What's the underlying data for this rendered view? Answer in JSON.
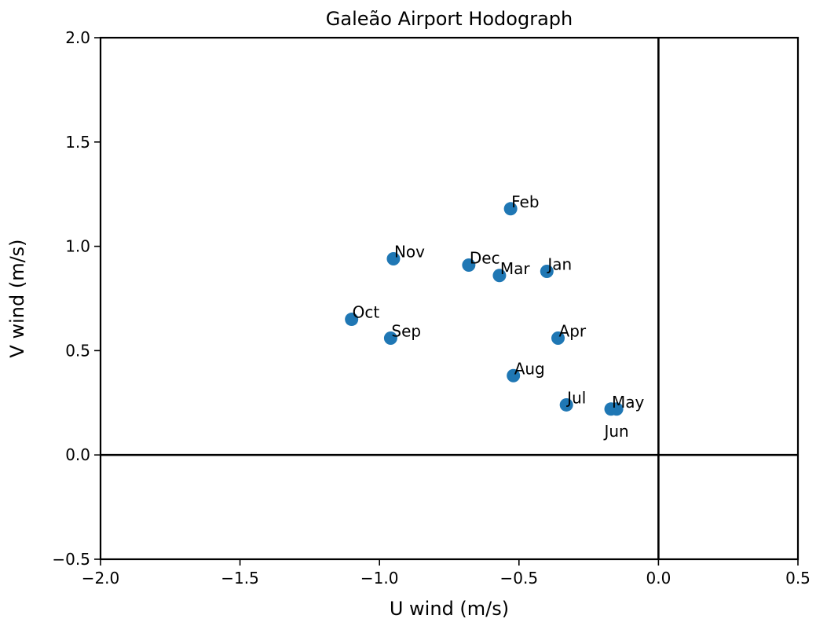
{
  "chart_data": {
    "type": "scatter",
    "title": "Galeão Airport Hodograph",
    "xlabel": "U wind (m/s)",
    "ylabel": "V wind (m/s)",
    "xlim": [
      -2.0,
      0.5
    ],
    "ylim": [
      -0.5,
      2.0
    ],
    "xticks": [
      "−2.0",
      "−1.5",
      "−1.0",
      "−0.5",
      "0.0",
      "0.5"
    ],
    "yticks": [
      "−0.5",
      "0.0",
      "0.5",
      "1.0",
      "1.5",
      "2.0"
    ],
    "grid": false,
    "zero_lines": true,
    "marker_color": "#1f77b4",
    "points": [
      {
        "label": "Jan",
        "x": -0.4,
        "y": 0.88
      },
      {
        "label": "Feb",
        "x": -0.53,
        "y": 1.18
      },
      {
        "label": "Mar",
        "x": -0.57,
        "y": 0.86
      },
      {
        "label": "Apr",
        "x": -0.36,
        "y": 0.56
      },
      {
        "label": "May",
        "x": -0.17,
        "y": 0.22
      },
      {
        "label": "Jun",
        "x": -0.15,
        "y": 0.22
      },
      {
        "label": "Jul",
        "x": -0.33,
        "y": 0.24
      },
      {
        "label": "Aug",
        "x": -0.52,
        "y": 0.38
      },
      {
        "label": "Sep",
        "x": -0.96,
        "y": 0.56
      },
      {
        "label": "Oct",
        "x": -1.1,
        "y": 0.65
      },
      {
        "label": "Nov",
        "x": -0.95,
        "y": 0.94
      },
      {
        "label": "Dec",
        "x": -0.68,
        "y": 0.91
      }
    ]
  }
}
